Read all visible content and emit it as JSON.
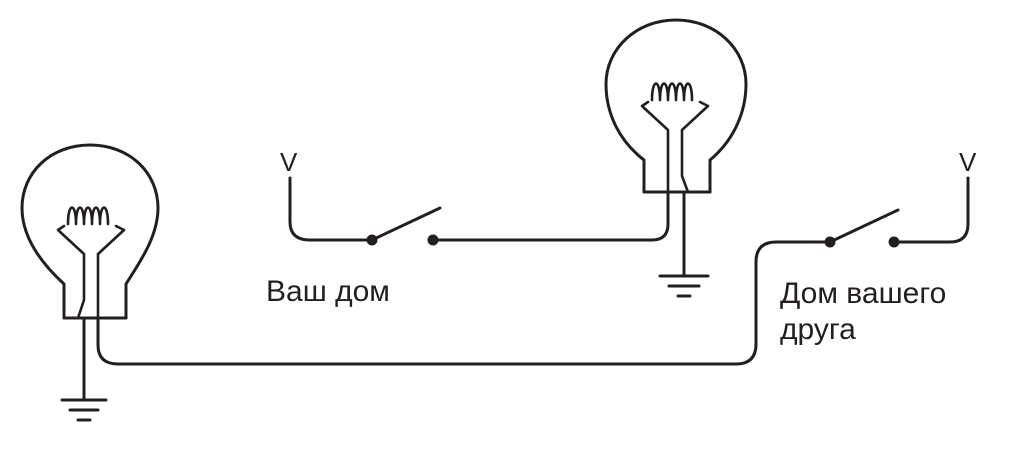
{
  "labels": {
    "left_voltage": "V",
    "right_voltage": "V",
    "your_house": "Ваш дом",
    "friend_house_line1": "Дом вашего",
    "friend_house_line2": "друга"
  },
  "colors": {
    "line": "#231f20",
    "background": "#ffffff"
  },
  "icons": [
    "light-bulb-icon",
    "switch-icon",
    "ground-icon"
  ]
}
